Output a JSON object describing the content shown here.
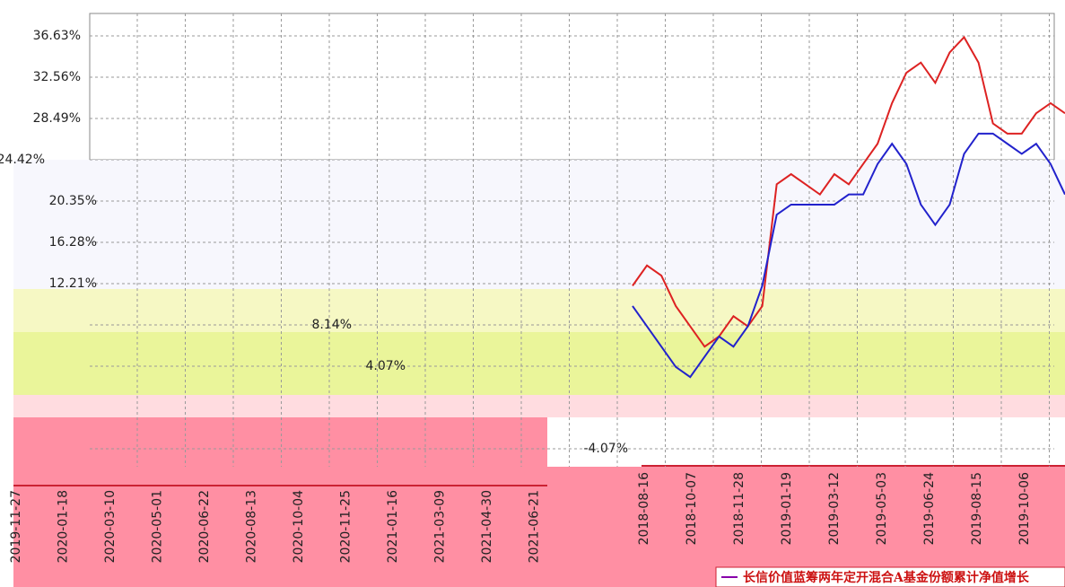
{
  "chart_data": [
    {
      "type": "axis-labels",
      "xtick_labels": [
        "2019-11-27",
        "2020-01-18",
        "2020-03-10",
        "2020-05-01",
        "2020-06-22",
        "2020-08-13",
        "2020-10-04",
        "2020-11-25",
        "2021-01-16",
        "2021-03-09",
        "2021-04-30",
        "2021-06-21"
      ]
    },
    {
      "type": "line",
      "ylim": [
        -5.84,
        38.84
      ],
      "yticks": [
        {
          "value": 36.63,
          "label": "36.63%"
        },
        {
          "value": 32.56,
          "label": "32.56%"
        },
        {
          "value": 28.49,
          "label": "28.49%"
        },
        {
          "value": 24.42,
          "label": "24.42%"
        },
        {
          "value": 20.35,
          "label": "20.35%"
        },
        {
          "value": 16.28,
          "label": "16.28%"
        },
        {
          "value": 12.21,
          "label": "12.21%"
        },
        {
          "value": 8.14,
          "label": "8.14%"
        },
        {
          "value": 4.07,
          "label": "4.07%"
        },
        {
          "value": -4.07,
          "label": "-4.07%"
        }
      ],
      "grid": true,
      "xtick_labels": [
        "2018-08-16",
        "2018-10-07",
        "2018-11-28",
        "2019-01-19",
        "2019-03-12",
        "2019-05-03",
        "2019-06-24",
        "2019-08-15",
        "2019-10-06"
      ],
      "series": [
        {
          "color": "#dd2222",
          "values": [
            12,
            14,
            13,
            10,
            8,
            6,
            7,
            9,
            8,
            10,
            22,
            23,
            22,
            21,
            23,
            22,
            24,
            26,
            30,
            33,
            34,
            32,
            35,
            36.5,
            34,
            28,
            27,
            27,
            29,
            30,
            29
          ]
        },
        {
          "name": "长信价值蓝筹两年定开混合A基金份额累计净值增长",
          "color": "#2222cc",
          "values": [
            10,
            8,
            6,
            4,
            3,
            5,
            7,
            6,
            8,
            12,
            19,
            20,
            20,
            20,
            20,
            21,
            21,
            24,
            26,
            24,
            20,
            18,
            20,
            25,
            27,
            27,
            26,
            25,
            26,
            24,
            21
          ]
        }
      ]
    }
  ]
}
